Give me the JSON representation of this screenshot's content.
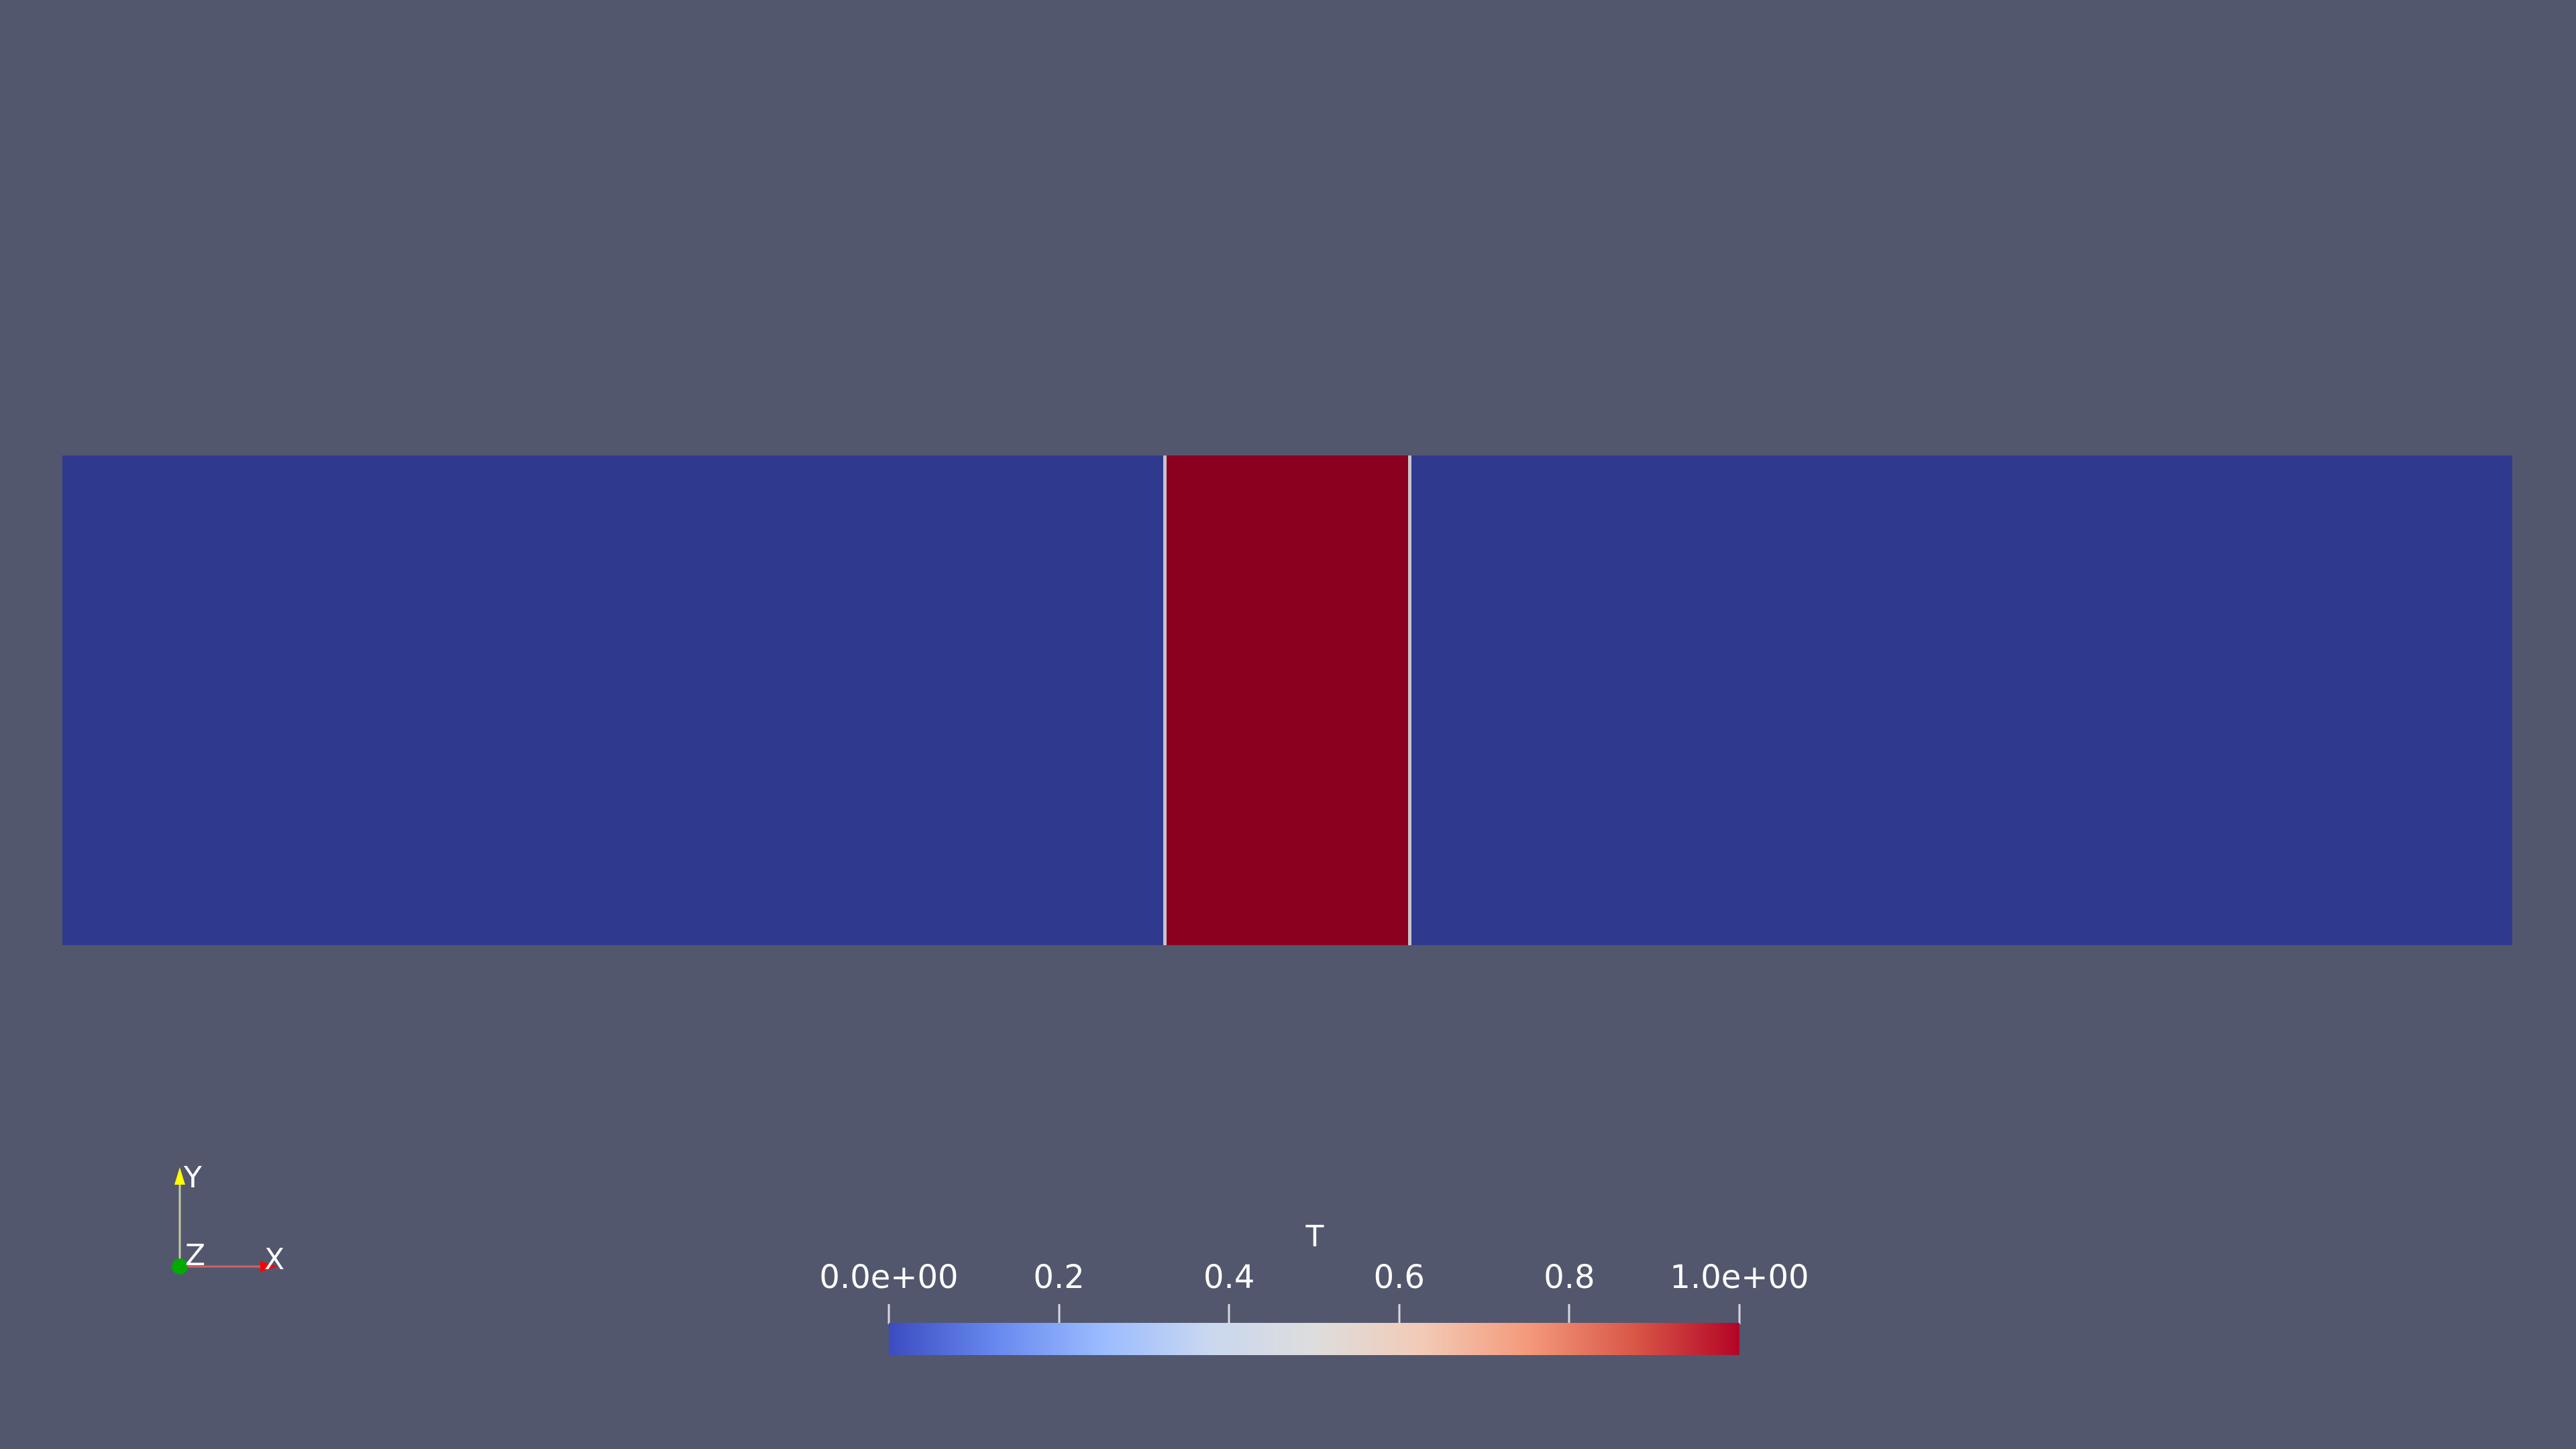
{
  "legend": {
    "title": "T",
    "ticks": [
      {
        "label": "0.0e+00",
        "value": 0.0
      },
      {
        "label": "0.2",
        "value": 0.2
      },
      {
        "label": "0.4",
        "value": 0.4
      },
      {
        "label": "0.6",
        "value": 0.6
      },
      {
        "label": "0.8",
        "value": 0.8
      },
      {
        "label": "1.0e+00",
        "value": 1.0
      }
    ],
    "range": [
      0.0,
      1.0
    ],
    "colormap": "cool-to-warm",
    "colors": {
      "min": "#3b4cc0",
      "mid": "#dddddd",
      "max": "#b40426"
    }
  },
  "field": {
    "background_color": "#52576e",
    "cold_value_color": "#2f3a8f",
    "hot_value_color": "#8a001e"
  },
  "axes": {
    "x_label": "X",
    "y_label": "Y",
    "z_label": "Z",
    "x_color": "#ff0000",
    "y_color": "#ffff00",
    "z_color": "#00aa00"
  }
}
